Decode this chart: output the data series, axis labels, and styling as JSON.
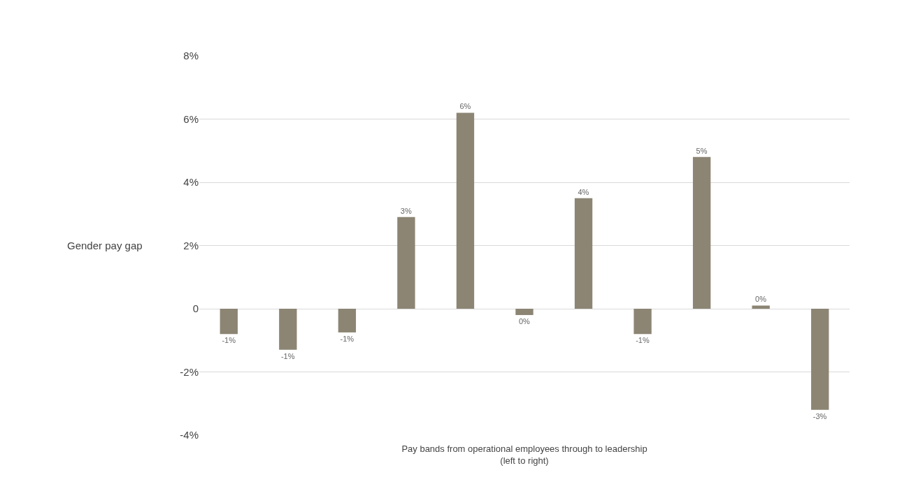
{
  "chart_data": {
    "type": "bar",
    "ylabel": "Gender pay gap",
    "xlabel": "Pay bands from operational employees through to leadership\n(left to right)",
    "categories": [
      null,
      null,
      null,
      null,
      null,
      null,
      null,
      null,
      null,
      null,
      null
    ],
    "values": [
      -0.8,
      -1.3,
      -0.75,
      2.9,
      6.2,
      -0.2,
      3.5,
      -0.8,
      4.8,
      0.1,
      -3.2
    ],
    "value_labels": [
      "-1%",
      "-1%",
      "-1%",
      "3%",
      "6%",
      "0%",
      "4%",
      "-1%",
      "5%",
      "0%",
      "-3%"
    ],
    "color": "#8c8574",
    "ylim": [
      -4,
      8
    ],
    "yticks": [
      {
        "value": -4,
        "label": "-4%"
      },
      {
        "value": -2,
        "label": "-2%"
      },
      0,
      {
        "value": 2,
        "label": "2%"
      },
      {
        "value": 4,
        "label": "4%"
      },
      {
        "value": 6,
        "label": "6%"
      },
      {
        "value": 8,
        "label": "8%"
      }
    ],
    "grid": "y",
    "tick_labels": "y"
  }
}
